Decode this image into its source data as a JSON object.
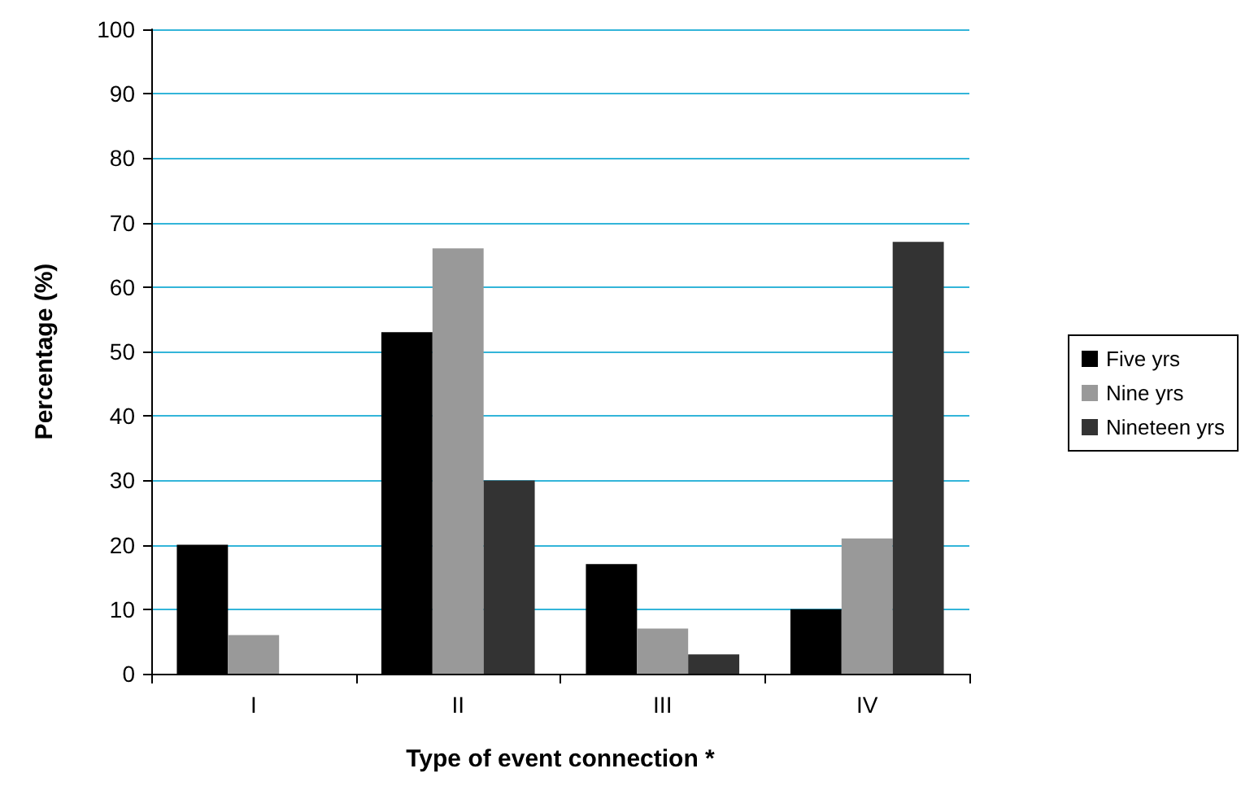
{
  "chart_data": {
    "type": "bar",
    "xlabel": "Type of event connection *",
    "ylabel": "Percentage (%)",
    "categories": [
      "I",
      "II",
      "III",
      "IV"
    ],
    "series": [
      {
        "name": "Five yrs",
        "color": "#000000",
        "values": [
          20,
          53,
          17,
          10
        ]
      },
      {
        "name": "Nine yrs",
        "color": "#999999",
        "values": [
          6,
          66,
          7,
          21
        ]
      },
      {
        "name": "Nineteen yrs",
        "color": "#333333",
        "values": [
          0,
          30,
          3,
          67
        ]
      }
    ],
    "ylim": [
      0,
      100
    ],
    "yticks": [
      0,
      10,
      20,
      30,
      40,
      50,
      60,
      70,
      80,
      90,
      100
    ],
    "grid": "y",
    "legend": "right"
  }
}
